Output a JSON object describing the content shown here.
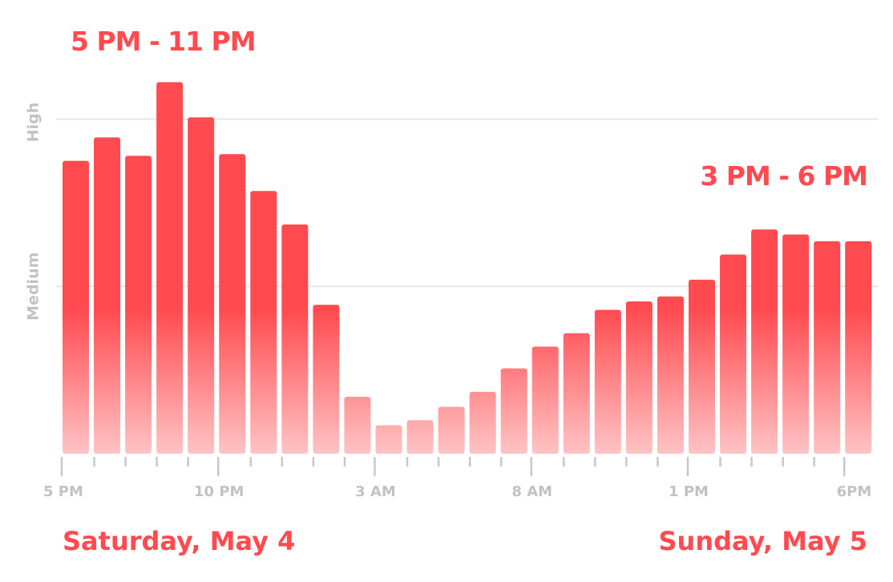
{
  "chart_data": {
    "type": "bar",
    "ylabels": [
      "High",
      "Medium"
    ],
    "ylevels": {
      "Medium": 1,
      "High": 2
    },
    "xticks": [
      {
        "index": 0,
        "label": "5 PM"
      },
      {
        "index": 5,
        "label": "10 PM"
      },
      {
        "index": 10,
        "label": "3 AM"
      },
      {
        "index": 15,
        "label": "8 AM"
      },
      {
        "index": 20,
        "label": "1 PM"
      },
      {
        "index": 25,
        "label": "6PM"
      }
    ],
    "values": [
      1.75,
      1.89,
      1.78,
      2.22,
      2.01,
      1.79,
      1.57,
      1.37,
      0.89,
      0.34,
      0.17,
      0.2,
      0.28,
      0.37,
      0.51,
      0.64,
      0.72,
      0.86,
      0.91,
      0.94,
      1.04,
      1.19,
      1.34,
      1.31,
      1.27,
      1.27
    ],
    "ylim": [
      0,
      2.28
    ],
    "annotations": {
      "peak1": "5 PM - 11 PM",
      "peak2": "3 PM - 6 PM",
      "day_left": "Saturday, May 4",
      "day_right": "Sunday, May 5"
    },
    "colors": {
      "bar_top": "#ff4a4f",
      "bar_bottom": "#ffc3c4",
      "accent": "#ff4a4f",
      "axis": "#c8c8c8",
      "grid": "#e6e6e6",
      "label": "#c2c2c2"
    }
  }
}
